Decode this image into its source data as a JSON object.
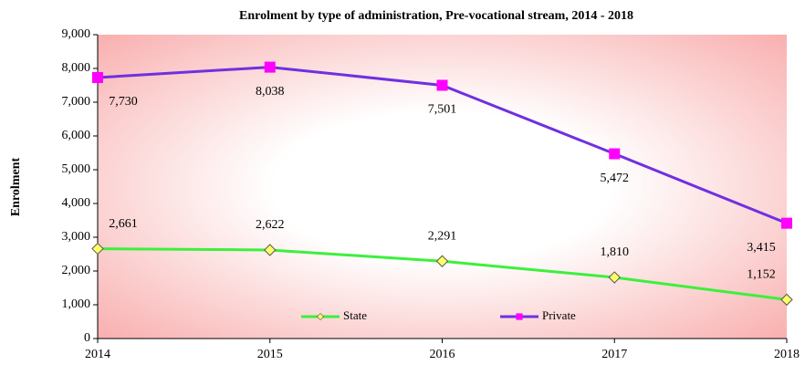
{
  "chart_data": {
    "type": "line",
    "title": "Enrolment by type of administration, Pre-vocational stream, 2014 - 2018",
    "y_label": "Enrolment",
    "x": [
      2014,
      2015,
      2016,
      2017,
      2018
    ],
    "xlim": [
      2014,
      2018
    ],
    "xticks": [
      2014,
      2015,
      2016,
      2017,
      2018
    ],
    "ylim": [
      0,
      9000
    ],
    "yticks": [
      0,
      {
        "value": 1000,
        "label": "1,000"
      },
      {
        "value": 2000,
        "label": "2,000"
      },
      {
        "value": 3000,
        "label": "3,000"
      },
      {
        "value": 4000,
        "label": "4,000"
      },
      {
        "value": 5000,
        "label": "5,000"
      },
      {
        "value": 6000,
        "label": "6,000"
      },
      {
        "value": 7000,
        "label": "7,000"
      },
      {
        "value": 8000,
        "label": "8,000"
      },
      {
        "value": 9000,
        "label": "9,000"
      }
    ],
    "legend": "bottom",
    "series": [
      {
        "name": "State",
        "color": "#3cf03c",
        "marker": "diamond",
        "marker_color": "#ffff66",
        "values": [
          2661,
          2622,
          2291,
          1810,
          1152
        ],
        "value_labels": [
          "2,661",
          "2,622",
          "2,291",
          "1,810",
          "1,152"
        ]
      },
      {
        "name": "Private",
        "color": "#7030e0",
        "marker": "square",
        "marker_color": "#ff00ff",
        "values": [
          7730,
          8038,
          7501,
          5472,
          3415
        ],
        "value_labels": [
          "7,730",
          "8,038",
          "7,501",
          "5,472",
          "3,415"
        ]
      }
    ]
  }
}
